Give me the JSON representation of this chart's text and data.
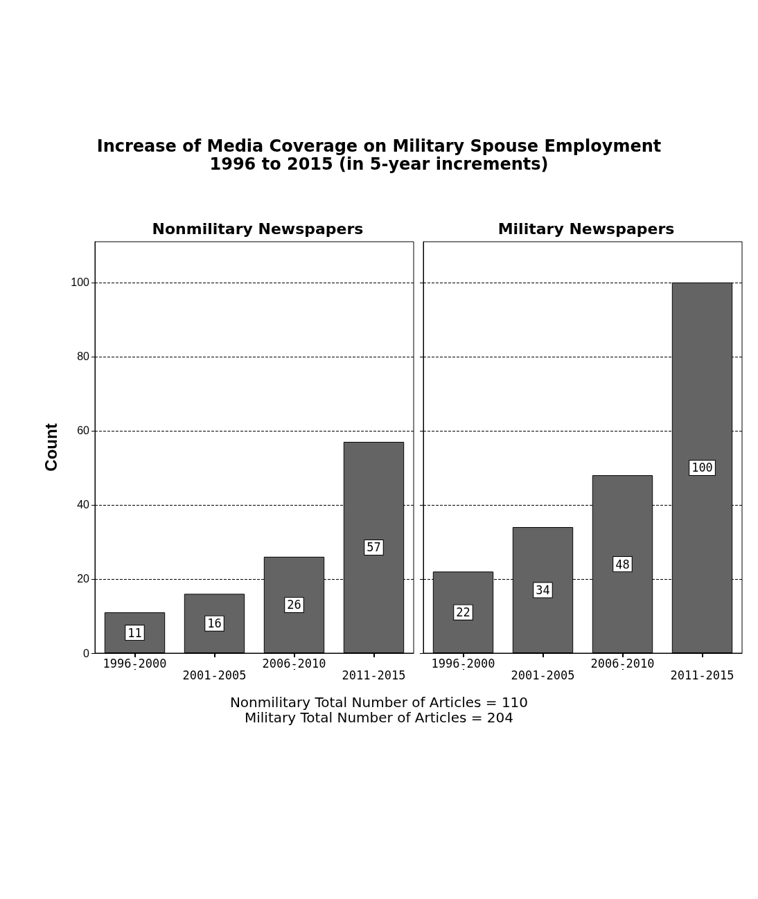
{
  "chart_data": [
    {
      "type": "other",
      "title": "Increase of Media Coverage on Military Spouse Employment\n1996 to 2015 (in 5-year increments)",
      "annotations": [
        "Nonmilitary Total Number of Articles = 110",
        "Military Total Number of Articles = 204"
      ]
    },
    {
      "type": "bar",
      "title": "Nonmilitary Newspapers",
      "ylabel": "Count",
      "categories": [
        "1996-2000",
        "2001-2005",
        "2006-2010",
        "2011-2015"
      ],
      "values": [
        11,
        16,
        26,
        57
      ],
      "color": "#646464",
      "ylim": [
        0,
        111
      ],
      "yticks": [
        0,
        20,
        40,
        60,
        80,
        100
      ],
      "grid": "y",
      "data_labels": true
    },
    {
      "type": "bar",
      "title": "Military Newspapers",
      "categories": [
        "1996-2000",
        "2001-2005",
        "2006-2010",
        "2011-2015"
      ],
      "values": [
        22,
        34,
        48,
        100
      ],
      "color": "#646464",
      "ylim": [
        0,
        111
      ],
      "yticks": [
        0,
        20,
        40,
        60,
        80,
        100
      ],
      "grid": "y",
      "data_labels": true,
      "tick_labels": "x"
    }
  ]
}
